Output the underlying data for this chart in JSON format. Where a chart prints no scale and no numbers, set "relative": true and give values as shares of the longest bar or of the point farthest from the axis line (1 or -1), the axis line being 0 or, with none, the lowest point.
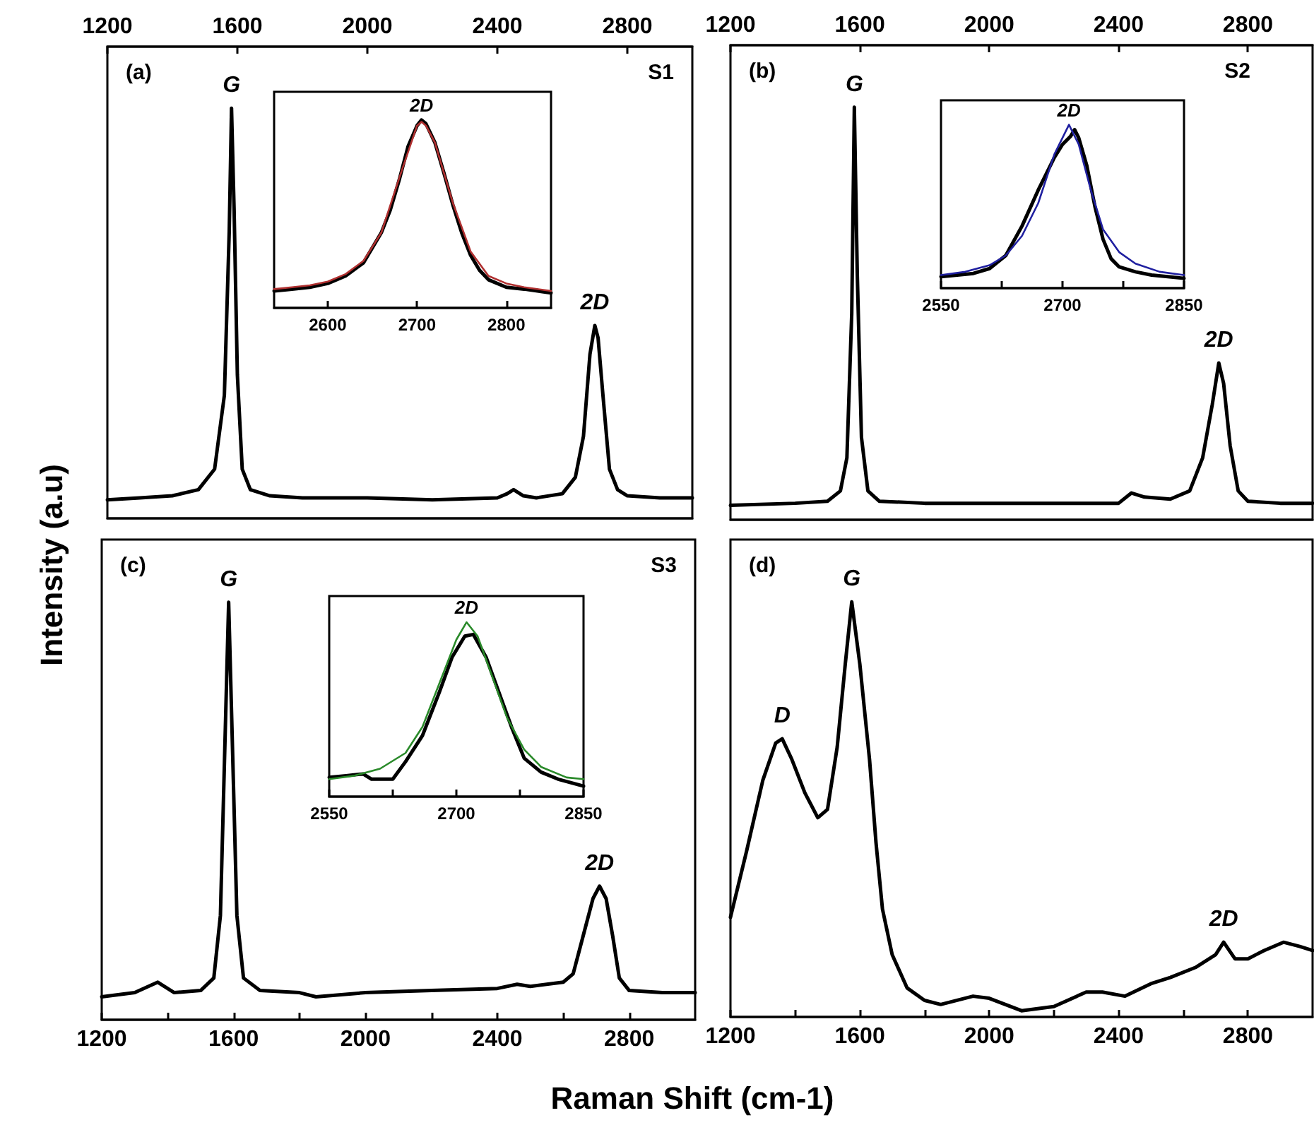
{
  "chart_data": [
    {
      "type": "line",
      "title": "(a)",
      "subtitle": "S1",
      "ylabel": "Intensity (a.u)",
      "relative": true,
      "xlim": [
        1200,
        3000
      ],
      "x2lim": [
        1200,
        3000
      ],
      "x2ticks": [
        1200,
        1600,
        2000,
        2400,
        2800
      ],
      "annotations": [
        {
          "text": "G",
          "x": 1582,
          "y": 1.0
        },
        {
          "text": "2D",
          "x": 2700,
          "y": 0.47
        }
      ],
      "series": [
        {
          "color": "#000000",
          "x": [
            1200,
            1300,
            1400,
            1480,
            1530,
            1560,
            1575,
            1582,
            1590,
            1600,
            1615,
            1640,
            1700,
            1800,
            2000,
            2200,
            2400,
            2430,
            2450,
            2480,
            2520,
            2600,
            2640,
            2665,
            2685,
            2700,
            2710,
            2725,
            2745,
            2770,
            2800,
            2900,
            3000
          ],
          "values": [
            0.045,
            0.05,
            0.055,
            0.07,
            0.12,
            0.3,
            0.7,
            1.0,
            0.75,
            0.35,
            0.12,
            0.07,
            0.055,
            0.05,
            0.05,
            0.045,
            0.05,
            0.06,
            0.07,
            0.055,
            0.05,
            0.06,
            0.1,
            0.2,
            0.4,
            0.47,
            0.44,
            0.3,
            0.12,
            0.07,
            0.055,
            0.05,
            0.05
          ]
        }
      ]
    },
    {
      "type": "line",
      "relative": true,
      "xlim": [
        2540,
        2850
      ],
      "xticks": [
        2600,
        2700,
        2800
      ],
      "annotations": [
        {
          "text": "2D",
          "x": 2705,
          "y": 1.0
        }
      ],
      "series": [
        {
          "color": "#000000",
          "x": [
            2540,
            2560,
            2580,
            2600,
            2620,
            2640,
            2660,
            2670,
            2680,
            2690,
            2700,
            2705,
            2710,
            2720,
            2730,
            2740,
            2750,
            2760,
            2770,
            2780,
            2800,
            2820,
            2850
          ],
          "values": [
            0.09,
            0.1,
            0.11,
            0.13,
            0.17,
            0.24,
            0.4,
            0.52,
            0.68,
            0.86,
            0.97,
            1.0,
            0.98,
            0.88,
            0.72,
            0.55,
            0.4,
            0.28,
            0.2,
            0.15,
            0.11,
            0.1,
            0.08
          ]
        },
        {
          "color": "#b03030",
          "x": [
            2540,
            2560,
            2580,
            2600,
            2620,
            2640,
            2660,
            2680,
            2700,
            2705,
            2710,
            2720,
            2740,
            2760,
            2780,
            2800,
            2820,
            2850
          ],
          "values": [
            0.1,
            0.11,
            0.12,
            0.14,
            0.18,
            0.25,
            0.4,
            0.69,
            0.97,
            0.99,
            0.97,
            0.88,
            0.56,
            0.3,
            0.17,
            0.13,
            0.11,
            0.09
          ]
        }
      ]
    },
    {
      "type": "line",
      "title": "(b)",
      "subtitle": "S2",
      "relative": true,
      "xlim": [
        1200,
        3000
      ],
      "x2lim": [
        1200,
        3000
      ],
      "x2ticks": [
        1200,
        1600,
        2000,
        2400,
        2800
      ],
      "annotations": [
        {
          "text": "G",
          "x": 1583,
          "y": 1.0
        },
        {
          "text": "2D",
          "x": 2710,
          "y": 0.38
        }
      ],
      "series": [
        {
          "color": "#000000",
          "x": [
            1200,
            1400,
            1500,
            1540,
            1560,
            1575,
            1583,
            1592,
            1605,
            1625,
            1660,
            1800,
            2000,
            2200,
            2400,
            2440,
            2480,
            2560,
            2620,
            2660,
            2690,
            2710,
            2725,
            2745,
            2770,
            2800,
            2900,
            3000
          ],
          "values": [
            0.035,
            0.04,
            0.045,
            0.07,
            0.15,
            0.5,
            1.0,
            0.6,
            0.2,
            0.07,
            0.045,
            0.04,
            0.04,
            0.04,
            0.04,
            0.065,
            0.055,
            0.05,
            0.07,
            0.15,
            0.28,
            0.38,
            0.33,
            0.18,
            0.07,
            0.045,
            0.04,
            0.04
          ]
        }
      ]
    },
    {
      "type": "line",
      "relative": true,
      "xlim": [
        2550,
        2850
      ],
      "xticks": [
        2550,
        {
          "value": 2625,
          "label": null
        },
        2700,
        {
          "value": 2775,
          "label": null
        },
        2850
      ],
      "annotations": [
        {
          "text": "2D",
          "x": 2708,
          "y": 1.0
        }
      ],
      "series": [
        {
          "color": "#000000",
          "x": [
            2550,
            2570,
            2590,
            2610,
            2630,
            2650,
            2670,
            2690,
            2700,
            2710,
            2715,
            2720,
            2730,
            2740,
            2750,
            2760,
            2770,
            2790,
            2810,
            2830,
            2850
          ],
          "values": [
            0.07,
            0.08,
            0.09,
            0.12,
            0.2,
            0.38,
            0.6,
            0.8,
            0.88,
            0.93,
            0.97,
            0.92,
            0.75,
            0.5,
            0.3,
            0.18,
            0.13,
            0.1,
            0.08,
            0.07,
            0.06
          ]
        },
        {
          "color": "#2020a0",
          "x": [
            2550,
            2580,
            2610,
            2630,
            2650,
            2670,
            2690,
            2708,
            2720,
            2735,
            2750,
            2770,
            2790,
            2820,
            2850
          ],
          "values": [
            0.08,
            0.1,
            0.14,
            0.2,
            0.32,
            0.52,
            0.82,
            1.0,
            0.88,
            0.6,
            0.36,
            0.22,
            0.15,
            0.1,
            0.08
          ]
        }
      ]
    },
    {
      "type": "line",
      "title": "(c)",
      "subtitle": "S3",
      "xlabel": "Raman Shift (cm-1)",
      "relative": true,
      "xlim": [
        1200,
        3000
      ],
      "xticks": [
        1200,
        {
          "value": 1400,
          "label": null
        },
        1600,
        {
          "value": 1800,
          "label": null
        },
        2000,
        {
          "value": 2200,
          "label": null
        },
        2400,
        {
          "value": 2600,
          "label": null
        },
        2800
      ],
      "annotations": [
        {
          "text": "G",
          "x": 1585,
          "y": 1.0
        },
        {
          "text": "2D",
          "x": 2710,
          "y": 0.32
        }
      ],
      "series": [
        {
          "color": "#000000",
          "x": [
            1200,
            1300,
            1370,
            1420,
            1500,
            1540,
            1560,
            1575,
            1585,
            1595,
            1610,
            1630,
            1680,
            1800,
            1850,
            2000,
            2200,
            2400,
            2460,
            2500,
            2600,
            2630,
            2660,
            2690,
            2710,
            2730,
            2750,
            2770,
            2800,
            2900,
            3000
          ],
          "values": [
            0.055,
            0.065,
            0.09,
            0.065,
            0.07,
            0.1,
            0.25,
            0.7,
            1.0,
            0.7,
            0.25,
            0.1,
            0.07,
            0.065,
            0.055,
            0.065,
            0.07,
            0.075,
            0.085,
            0.08,
            0.09,
            0.11,
            0.2,
            0.29,
            0.32,
            0.29,
            0.2,
            0.1,
            0.07,
            0.065,
            0.065
          ]
        }
      ]
    },
    {
      "type": "line",
      "relative": true,
      "xlim": [
        2550,
        2850
      ],
      "xticks": [
        2550,
        {
          "value": 2625,
          "label": null
        },
        2700,
        {
          "value": 2775,
          "label": null
        },
        2850
      ],
      "annotations": [
        {
          "text": "2D",
          "x": 2712,
          "y": 1.0
        }
      ],
      "series": [
        {
          "color": "#000000",
          "x": [
            2550,
            2570,
            2590,
            2600,
            2625,
            2640,
            2660,
            2680,
            2695,
            2710,
            2720,
            2735,
            2750,
            2765,
            2780,
            2800,
            2820,
            2850
          ],
          "values": [
            0.11,
            0.12,
            0.13,
            0.1,
            0.1,
            0.2,
            0.35,
            0.6,
            0.8,
            0.92,
            0.93,
            0.8,
            0.6,
            0.4,
            0.22,
            0.14,
            0.1,
            0.06
          ]
        },
        {
          "color": "#2a8a2a",
          "x": [
            2550,
            2580,
            2610,
            2640,
            2660,
            2680,
            2700,
            2712,
            2725,
            2740,
            2760,
            2780,
            2800,
            2830,
            2850
          ],
          "values": [
            0.1,
            0.12,
            0.16,
            0.25,
            0.4,
            0.65,
            0.9,
            1.0,
            0.92,
            0.72,
            0.45,
            0.27,
            0.17,
            0.11,
            0.1
          ]
        }
      ]
    },
    {
      "type": "line",
      "title": "(d)",
      "relative": true,
      "xlim": [
        1200,
        3000
      ],
      "xticks": [
        1200,
        {
          "value": 1400,
          "label": null
        },
        1600,
        {
          "value": 1800,
          "label": null
        },
        2000,
        {
          "value": 2200,
          "label": null
        },
        2400,
        {
          "value": 2600,
          "label": null
        },
        2800
      ],
      "annotations": [
        {
          "text": "D",
          "x": 1360,
          "y": 0.67
        },
        {
          "text": "G",
          "x": 1575,
          "y": 1.0
        },
        {
          "text": "2D",
          "x": 2725,
          "y": 0.18
        }
      ],
      "series": [
        {
          "color": "#000000",
          "x": [
            1200,
            1250,
            1300,
            1340,
            1360,
            1390,
            1430,
            1470,
            1500,
            1530,
            1555,
            1575,
            1600,
            1630,
            1650,
            1670,
            1700,
            1746,
            1800,
            1850,
            1950,
            2000,
            2100,
            2200,
            2300,
            2350,
            2420,
            2500,
            2560,
            2640,
            2700,
            2725,
            2760,
            2800,
            2850,
            2910,
            2960,
            3000
          ],
          "values": [
            0.24,
            0.4,
            0.57,
            0.66,
            0.67,
            0.62,
            0.54,
            0.48,
            0.5,
            0.65,
            0.85,
            1.0,
            0.85,
            0.62,
            0.42,
            0.26,
            0.15,
            0.07,
            0.04,
            0.03,
            0.05,
            0.045,
            0.015,
            0.025,
            0.06,
            0.06,
            0.05,
            0.08,
            0.095,
            0.12,
            0.15,
            0.18,
            0.14,
            0.14,
            0.16,
            0.18,
            0.17,
            0.16
          ]
        }
      ]
    }
  ]
}
